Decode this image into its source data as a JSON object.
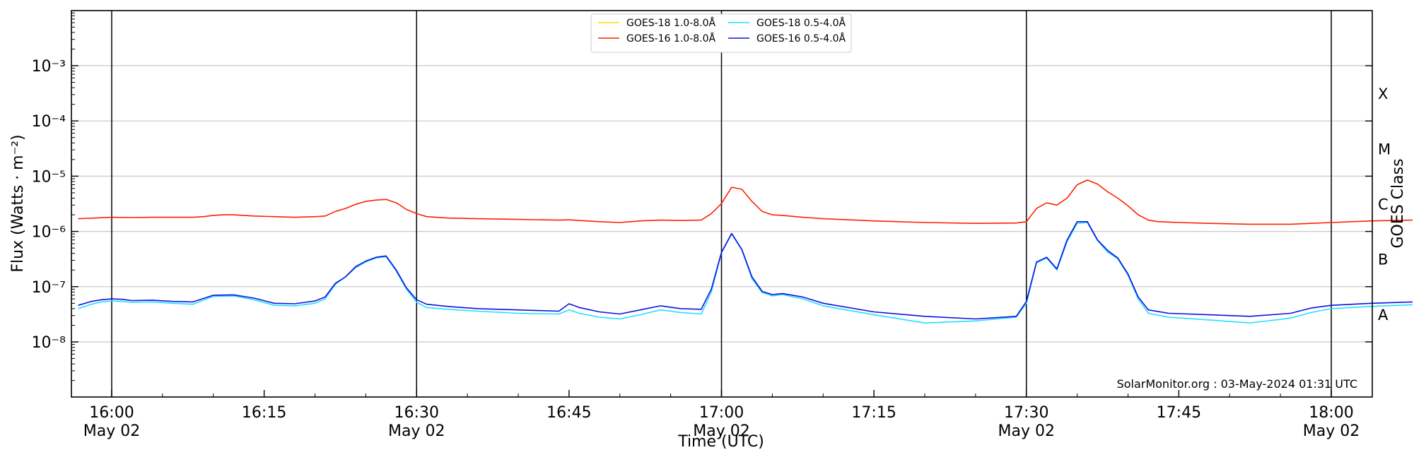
{
  "chart_data": {
    "type": "line",
    "title": "",
    "xlabel": "Time (UTC)",
    "ylabel": "Flux (Watts · m⁻²)",
    "y2label": "GOES Class",
    "yscale": "log",
    "ylim": [
      1e-09,
      0.01
    ],
    "xlim_minutes": [
      -3.3,
      60
    ],
    "grid": "horizontal",
    "legend_placement": "top-center",
    "watermark": "SolarMonitor.org : 03-May-2024 01:31 UTC",
    "x_ticks": [
      {
        "minute": 0,
        "time": "16:00",
        "date": "May 02"
      },
      {
        "minute": 15,
        "time": "16:15",
        "date": ""
      },
      {
        "minute": 30,
        "time": "16:30",
        "date": "May 02"
      },
      {
        "minute": 45,
        "time": "16:45",
        "date": ""
      },
      {
        "minute": 60,
        "time": "17:00",
        "date": "May 02"
      },
      {
        "minute": 75,
        "time": "17:15",
        "date": ""
      },
      {
        "minute": 90,
        "time": "17:30",
        "date": "May 02"
      },
      {
        "minute": 105,
        "time": "17:45",
        "date": ""
      },
      {
        "minute": 120,
        "time": "18:00",
        "date": "May 02"
      }
    ],
    "vlines_minutes": [
      0,
      30,
      60,
      90,
      120
    ],
    "y_ticks": [
      {
        "exp": -8,
        "label": "10⁻⁸"
      },
      {
        "exp": -7,
        "label": "10⁻⁷"
      },
      {
        "exp": -6,
        "label": "10⁻⁶"
      },
      {
        "exp": -5,
        "label": "10⁻⁵"
      },
      {
        "exp": -4,
        "label": "10⁻⁴"
      },
      {
        "exp": -3,
        "label": "10⁻³"
      }
    ],
    "goes_classes": [
      {
        "label": "A",
        "exp": -7.5
      },
      {
        "label": "B",
        "exp": -6.5
      },
      {
        "label": "C",
        "exp": -5.5
      },
      {
        "label": "M",
        "exp": -4.5
      },
      {
        "label": "X",
        "exp": -3.5
      }
    ],
    "series": [
      {
        "name": "GOES-18 1.0-8.0Å",
        "color": "#ffd700",
        "values": []
      },
      {
        "name": "GOES-16 1.0-8.0Å",
        "color": "#ff2000",
        "values": [
          [
            -3.3,
            1.7e-06
          ],
          [
            0,
            1.8e-06
          ],
          [
            2,
            1.78e-06
          ],
          [
            4,
            1.8e-06
          ],
          [
            6,
            1.8e-06
          ],
          [
            8,
            1.8e-06
          ],
          [
            9,
            1.85e-06
          ],
          [
            10,
            1.95e-06
          ],
          [
            11,
            2e-06
          ],
          [
            12,
            2e-06
          ],
          [
            14,
            1.9e-06
          ],
          [
            16,
            1.85e-06
          ],
          [
            18,
            1.8e-06
          ],
          [
            20,
            1.85e-06
          ],
          [
            21,
            1.9e-06
          ],
          [
            22,
            2.3e-06
          ],
          [
            23,
            2.6e-06
          ],
          [
            24,
            3.1e-06
          ],
          [
            25,
            3.5e-06
          ],
          [
            26,
            3.7e-06
          ],
          [
            27,
            3.8e-06
          ],
          [
            28,
            3.3e-06
          ],
          [
            29,
            2.5e-06
          ],
          [
            30,
            2.1e-06
          ],
          [
            31,
            1.85e-06
          ],
          [
            33,
            1.75e-06
          ],
          [
            36,
            1.7e-06
          ],
          [
            40,
            1.65e-06
          ],
          [
            44,
            1.6e-06
          ],
          [
            45,
            1.62e-06
          ],
          [
            48,
            1.5e-06
          ],
          [
            50,
            1.45e-06
          ],
          [
            52,
            1.55e-06
          ],
          [
            54,
            1.6e-06
          ],
          [
            56,
            1.58e-06
          ],
          [
            58,
            1.6e-06
          ],
          [
            59,
            2.1e-06
          ],
          [
            60,
            3.2e-06
          ],
          [
            61,
            6.3e-06
          ],
          [
            62,
            5.8e-06
          ],
          [
            63,
            3.5e-06
          ],
          [
            64,
            2.3e-06
          ],
          [
            65,
            2e-06
          ],
          [
            66,
            1.95e-06
          ],
          [
            68,
            1.8e-06
          ],
          [
            70,
            1.7e-06
          ],
          [
            75,
            1.55e-06
          ],
          [
            80,
            1.45e-06
          ],
          [
            85,
            1.4e-06
          ],
          [
            89,
            1.42e-06
          ],
          [
            90,
            1.5e-06
          ],
          [
            91,
            2.6e-06
          ],
          [
            92,
            3.3e-06
          ],
          [
            93,
            3e-06
          ],
          [
            94,
            4e-06
          ],
          [
            95,
            7e-06
          ],
          [
            96,
            8.5e-06
          ],
          [
            97,
            7.2e-06
          ],
          [
            98,
            5.2e-06
          ],
          [
            99,
            4e-06
          ],
          [
            100,
            2.9e-06
          ],
          [
            101,
            2e-06
          ],
          [
            102,
            1.6e-06
          ],
          [
            103,
            1.5e-06
          ],
          [
            105,
            1.45e-06
          ],
          [
            108,
            1.4e-06
          ],
          [
            112,
            1.35e-06
          ],
          [
            116,
            1.35e-06
          ],
          [
            118,
            1.4e-06
          ],
          [
            120,
            1.45e-06
          ],
          [
            122,
            1.5e-06
          ],
          [
            124,
            1.55e-06
          ],
          [
            128,
            1.6e-06
          ]
        ]
      },
      {
        "name": "GOES-18 0.5-4.0Å",
        "color": "#20e0ff",
        "values": [
          [
            -3.3,
            4e-08
          ],
          [
            -2,
            4.8e-08
          ],
          [
            -1,
            5.3e-08
          ],
          [
            0,
            5.5e-08
          ],
          [
            1,
            5.4e-08
          ],
          [
            2,
            5.2e-08
          ],
          [
            4,
            5.3e-08
          ],
          [
            6,
            5e-08
          ],
          [
            8,
            4.8e-08
          ],
          [
            10,
            6.7e-08
          ],
          [
            12,
            6.8e-08
          ],
          [
            14,
            5.8e-08
          ],
          [
            16,
            4.6e-08
          ],
          [
            18,
            4.5e-08
          ],
          [
            20,
            5e-08
          ],
          [
            21,
            6e-08
          ],
          [
            22,
            1.1e-07
          ],
          [
            23,
            1.5e-07
          ],
          [
            24,
            2.2e-07
          ],
          [
            25,
            2.8e-07
          ],
          [
            26,
            3.3e-07
          ],
          [
            27,
            3.5e-07
          ],
          [
            28,
            1.9e-07
          ],
          [
            29,
            9e-08
          ],
          [
            30,
            5.2e-08
          ],
          [
            31,
            4.2e-08
          ],
          [
            33,
            3.9e-08
          ],
          [
            36,
            3.6e-08
          ],
          [
            40,
            3.3e-08
          ],
          [
            44,
            3.2e-08
          ],
          [
            45,
            3.8e-08
          ],
          [
            46,
            3.3e-08
          ],
          [
            48,
            2.8e-08
          ],
          [
            50,
            2.6e-08
          ],
          [
            52,
            3.1e-08
          ],
          [
            54,
            3.8e-08
          ],
          [
            56,
            3.4e-08
          ],
          [
            58,
            3.2e-08
          ],
          [
            59,
            8e-08
          ],
          [
            60,
            4.1e-07
          ],
          [
            61,
            9e-07
          ],
          [
            62,
            4.6e-07
          ],
          [
            63,
            1.4e-07
          ],
          [
            64,
            7.8e-08
          ],
          [
            65,
            6.8e-08
          ],
          [
            66,
            7.2e-08
          ],
          [
            68,
            6e-08
          ],
          [
            70,
            4.5e-08
          ],
          [
            75,
            3.1e-08
          ],
          [
            80,
            2.2e-08
          ],
          [
            85,
            2.4e-08
          ],
          [
            89,
            2.8e-08
          ],
          [
            90,
            5e-08
          ],
          [
            91,
            2.7e-07
          ],
          [
            92,
            3.3e-07
          ],
          [
            93,
            2e-07
          ],
          [
            94,
            6.5e-07
          ],
          [
            95,
            1.4e-06
          ],
          [
            96,
            1.45e-06
          ],
          [
            97,
            6.8e-07
          ],
          [
            98,
            4.2e-07
          ],
          [
            99,
            3.2e-07
          ],
          [
            100,
            1.6e-07
          ],
          [
            101,
            6e-08
          ],
          [
            102,
            3.3e-08
          ],
          [
            104,
            2.8e-08
          ],
          [
            108,
            2.5e-08
          ],
          [
            112,
            2.2e-08
          ],
          [
            116,
            2.7e-08
          ],
          [
            118,
            3.4e-08
          ],
          [
            120,
            4e-08
          ],
          [
            124,
            4.4e-08
          ],
          [
            128,
            4.7e-08
          ]
        ]
      },
      {
        "name": "GOES-16 0.5-4.0Å",
        "color": "#1010e0",
        "values": [
          [
            -3.3,
            4.6e-08
          ],
          [
            -2,
            5.4e-08
          ],
          [
            -1,
            5.8e-08
          ],
          [
            0,
            6e-08
          ],
          [
            1,
            5.9e-08
          ],
          [
            2,
            5.6e-08
          ],
          [
            4,
            5.7e-08
          ],
          [
            6,
            5.4e-08
          ],
          [
            8,
            5.3e-08
          ],
          [
            10,
            7e-08
          ],
          [
            12,
            7.1e-08
          ],
          [
            14,
            6.2e-08
          ],
          [
            16,
            5e-08
          ],
          [
            18,
            4.9e-08
          ],
          [
            20,
            5.5e-08
          ],
          [
            21,
            6.5e-08
          ],
          [
            22,
            1.15e-07
          ],
          [
            23,
            1.5e-07
          ],
          [
            24,
            2.3e-07
          ],
          [
            25,
            2.9e-07
          ],
          [
            26,
            3.4e-07
          ],
          [
            27,
            3.6e-07
          ],
          [
            28,
            2e-07
          ],
          [
            29,
            9.5e-08
          ],
          [
            30,
            5.8e-08
          ],
          [
            31,
            4.8e-08
          ],
          [
            33,
            4.4e-08
          ],
          [
            36,
            4e-08
          ],
          [
            40,
            3.8e-08
          ],
          [
            44,
            3.6e-08
          ],
          [
            45,
            4.9e-08
          ],
          [
            46,
            4.2e-08
          ],
          [
            48,
            3.5e-08
          ],
          [
            50,
            3.2e-08
          ],
          [
            52,
            3.8e-08
          ],
          [
            54,
            4.5e-08
          ],
          [
            56,
            4e-08
          ],
          [
            58,
            3.9e-08
          ],
          [
            59,
            9e-08
          ],
          [
            60,
            4.2e-07
          ],
          [
            61,
            9.2e-07
          ],
          [
            62,
            4.7e-07
          ],
          [
            63,
            1.5e-07
          ],
          [
            64,
            8.2e-08
          ],
          [
            65,
            7.2e-08
          ],
          [
            66,
            7.5e-08
          ],
          [
            68,
            6.5e-08
          ],
          [
            70,
            5e-08
          ],
          [
            75,
            3.5e-08
          ],
          [
            80,
            2.9e-08
          ],
          [
            85,
            2.6e-08
          ],
          [
            89,
            2.9e-08
          ],
          [
            90,
            5.4e-08
          ],
          [
            91,
            2.8e-07
          ],
          [
            92,
            3.4e-07
          ],
          [
            93,
            2.1e-07
          ],
          [
            94,
            7e-07
          ],
          [
            95,
            1.5e-06
          ],
          [
            96,
            1.5e-06
          ],
          [
            97,
            7e-07
          ],
          [
            98,
            4.5e-07
          ],
          [
            99,
            3.3e-07
          ],
          [
            100,
            1.7e-07
          ],
          [
            101,
            6.5e-08
          ],
          [
            102,
            3.8e-08
          ],
          [
            104,
            3.3e-08
          ],
          [
            108,
            3.1e-08
          ],
          [
            112,
            2.9e-08
          ],
          [
            116,
            3.3e-08
          ],
          [
            118,
            4.1e-08
          ],
          [
            120,
            4.6e-08
          ],
          [
            124,
            5e-08
          ],
          [
            128,
            5.3e-08
          ]
        ]
      }
    ]
  }
}
